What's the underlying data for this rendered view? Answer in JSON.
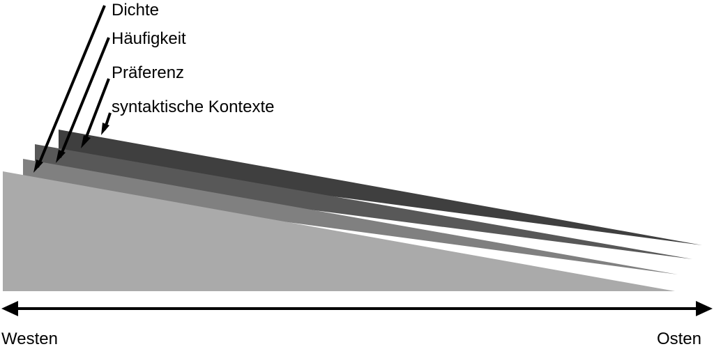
{
  "layers": [
    {
      "label": "Dichte",
      "color": "#aaaaaa"
    },
    {
      "label": "Häufigkeit",
      "color": "#808080"
    },
    {
      "label": "Präferenz",
      "color": "#585858"
    },
    {
      "label": "syntaktische Kontexte",
      "color": "#3f3f3f"
    }
  ],
  "axis": {
    "left_label": "Westen",
    "right_label": "Osten",
    "color": "#000000"
  }
}
